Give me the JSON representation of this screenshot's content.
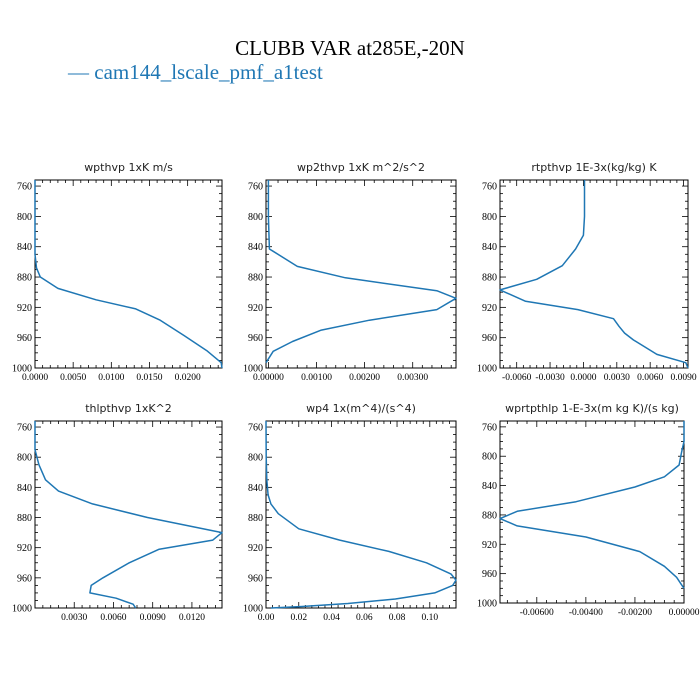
{
  "title": "CLUBB VAR at285E,-20N",
  "legend": {
    "dash": "—",
    "label": "cam144_lscale_pmf_a1test"
  },
  "colors": {
    "line": "#1f77b4",
    "axis": "#000000"
  },
  "chart_data": [
    {
      "type": "line",
      "title": "wpthvp   1xK m/s",
      "xlim": [
        0,
        0.0245
      ],
      "ylim": [
        1000,
        752
      ],
      "xticks": [
        0,
        0.005,
        0.01,
        0.015,
        0.02
      ],
      "xtick_labels": [
        "0.0000",
        "0.0050",
        "0.0100",
        "0.0150",
        "0.0200"
      ],
      "yticks": [
        760,
        800,
        840,
        880,
        920,
        960,
        1000
      ],
      "series": [
        {
          "x": [
            0,
            0,
            0.0002,
            0.0007,
            0.003,
            0.008,
            0.0132,
            0.0164,
            0.0195,
            0.0225,
            0.0244,
            0.0245
          ],
          "y": [
            752,
            850,
            868,
            880,
            895,
            910,
            922,
            937,
            957,
            977,
            993,
            1000
          ]
        }
      ]
    },
    {
      "type": "line",
      "title": "wp2thvp   1xK m^2/s^2",
      "xlim": [
        -5e-05,
        0.0039
      ],
      "ylim": [
        1000,
        752
      ],
      "xticks": [
        0,
        0.001,
        0.002,
        0.003
      ],
      "xtick_labels": [
        "0.00000",
        "0.00100",
        "0.00200",
        "0.00300"
      ],
      "yticks": [
        760,
        800,
        840,
        880,
        920,
        960,
        1000
      ],
      "series": [
        {
          "x": [
            0.0,
            0.0,
            2e-05,
            0.0001,
            0.0006,
            0.0016,
            0.0035,
            0.0039,
            0.0035,
            0.0021,
            0.0011,
            0.0005,
            0.0001,
            -5e-05
          ],
          "y": [
            752,
            800,
            843,
            846,
            866,
            881,
            898,
            908,
            923,
            937,
            950,
            965,
            978,
            993
          ]
        }
      ]
    },
    {
      "type": "line",
      "title": "rtpthvp   1E-3x(kg/kg) K",
      "xlim": [
        -0.0075,
        0.0094
      ],
      "ylim": [
        1000,
        752
      ],
      "xticks": [
        -0.006,
        -0.003,
        0,
        0.003,
        0.006,
        0.009
      ],
      "xtick_labels": [
        "-0.0060",
        "-0.0030",
        "0.0000",
        "0.0030",
        "0.0060",
        "0.0090"
      ],
      "yticks": [
        760,
        800,
        840,
        880,
        920,
        960,
        1000
      ],
      "series": [
        {
          "x": [
            0.0001,
            0.0001,
            0,
            -0.0007,
            -0.0019,
            -0.0042,
            -0.0075,
            -0.0052,
            -0.0005,
            0.0027,
            0.0032,
            0.0037,
            0.0045,
            0.0066,
            0.0092,
            0.0094
          ],
          "y": [
            752,
            800,
            825,
            843,
            865,
            883,
            897,
            912,
            923,
            935,
            945,
            954,
            963,
            982,
            993,
            1000
          ]
        }
      ]
    },
    {
      "type": "line",
      "title": "thlpthvp   1xK^2",
      "xlim": [
        0,
        0.0143
      ],
      "ylim": [
        1000,
        752
      ],
      "xticks": [
        0.003,
        0.006,
        0.009,
        0.012
      ],
      "xtick_labels": [
        "0.0030",
        "0.0060",
        "0.0090",
        "0.0120"
      ],
      "yticks": [
        760,
        800,
        840,
        880,
        920,
        960,
        1000
      ],
      "series": [
        {
          "x": [
            0,
            0,
            0.0003,
            0.0008,
            0.0018,
            0.0044,
            0.0086,
            0.0143,
            0.0136,
            0.0095,
            0.0072,
            0.0052,
            0.0043,
            0.0042,
            0.0062,
            0.0075,
            0.0077
          ],
          "y": [
            752,
            790,
            810,
            830,
            845,
            862,
            880,
            900,
            910,
            922,
            940,
            960,
            970,
            980,
            987,
            995,
            1000
          ]
        }
      ]
    },
    {
      "type": "line",
      "title": "wp4   1x(m^4)/(s^4)",
      "xlim": [
        0,
        0.116
      ],
      "ylim": [
        1000,
        752
      ],
      "xticks": [
        0,
        0.02,
        0.04,
        0.06,
        0.08,
        0.1
      ],
      "xtick_labels": [
        "0.00",
        "0.02",
        "0.04",
        "0.06",
        "0.08",
        "0.10"
      ],
      "yticks": [
        760,
        800,
        840,
        880,
        920,
        960,
        1000
      ],
      "series": [
        {
          "x": [
            0,
            0.0001,
            0.0005,
            0.0013,
            0.003,
            0.0075,
            0.02,
            0.045,
            0.075,
            0.098,
            0.113,
            0.116,
            0.114,
            0.103,
            0.079,
            0.05,
            0.022,
            0.003
          ],
          "y": [
            752,
            800,
            830,
            850,
            862,
            875,
            895,
            910,
            925,
            940,
            955,
            963,
            970,
            980,
            988,
            994,
            998,
            1000
          ]
        }
      ]
    },
    {
      "type": "line",
      "title": "wprtpthlp   1-E-3x(m kg K)/(s kg)",
      "xlim": [
        -0.0075,
        0
      ],
      "ylim": [
        1000,
        752
      ],
      "xticks": [
        -0.006,
        -0.004,
        -0.002,
        0
      ],
      "xtick_labels": [
        "-0.00600",
        "-0.00400",
        "-0.00200",
        "0.00000"
      ],
      "yticks": [
        760,
        800,
        840,
        880,
        920,
        960,
        1000
      ],
      "series": [
        {
          "x": [
            0,
            0,
            -0.0001,
            -0.0002,
            -0.0008,
            -0.002,
            -0.0044,
            -0.0068,
            -0.0075,
            -0.0068,
            -0.004,
            -0.0018,
            -0.0008,
            -0.0003,
            -0.0001,
            0
          ],
          "y": [
            752,
            780,
            795,
            812,
            828,
            842,
            862,
            875,
            885,
            895,
            910,
            930,
            950,
            965,
            975,
            980
          ]
        }
      ]
    }
  ]
}
